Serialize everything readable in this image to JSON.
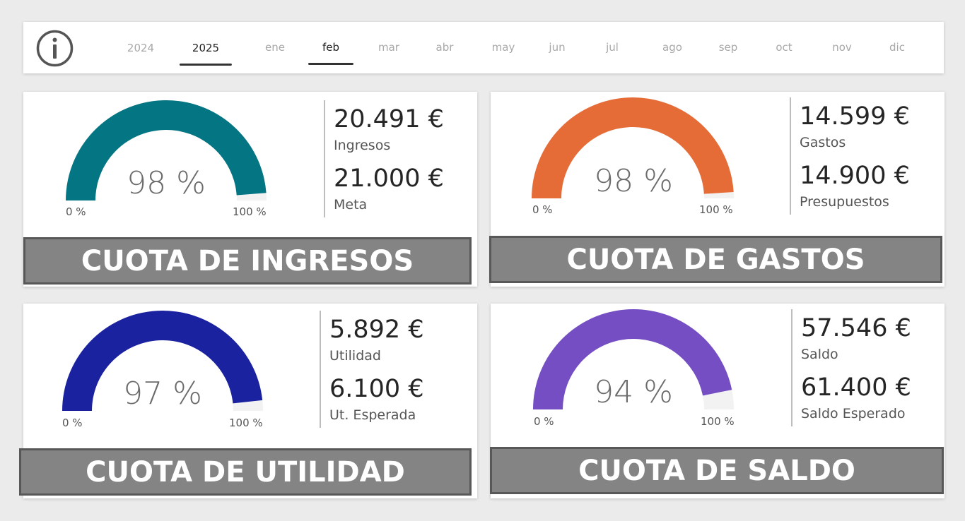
{
  "header": {
    "info_icon": "info-icon",
    "years": [
      {
        "label": "2024",
        "selected": false
      },
      {
        "label": "2025",
        "selected": true
      }
    ],
    "months": [
      {
        "label": "ene",
        "selected": false
      },
      {
        "label": "feb",
        "selected": true
      },
      {
        "label": "mar",
        "selected": false
      },
      {
        "label": "abr",
        "selected": false
      },
      {
        "label": "may",
        "selected": false
      },
      {
        "label": "jun",
        "selected": false
      },
      {
        "label": "jul",
        "selected": false
      },
      {
        "label": "ago",
        "selected": false
      },
      {
        "label": "sep",
        "selected": false
      },
      {
        "label": "oct",
        "selected": false
      },
      {
        "label": "nov",
        "selected": false
      },
      {
        "label": "dic",
        "selected": false
      }
    ]
  },
  "cards": [
    {
      "key": "ingresos",
      "color": "#047582",
      "gauge_fraction": 0.976,
      "gauge_pct": "98 %",
      "min_label": "0 %",
      "max_label": "100 %",
      "kpis": [
        {
          "value": "20.491 €",
          "label": "Ingresos"
        },
        {
          "value": "21.000 €",
          "label": "Meta"
        }
      ],
      "title": "CUOTA DE INGRESOS"
    },
    {
      "key": "gastos",
      "color": "#E66C37",
      "gauge_fraction": 0.98,
      "gauge_pct": "98 %",
      "min_label": "0 %",
      "max_label": "100 %",
      "kpis": [
        {
          "value": "14.599 €",
          "label": "Gastos"
        },
        {
          "value": "14.900 €",
          "label": "Presupuestos"
        }
      ],
      "title": "CUOTA DE GASTOS"
    },
    {
      "key": "utilidad",
      "color": "#1A22A0",
      "gauge_fraction": 0.966,
      "gauge_pct": "97 %",
      "min_label": "0 %",
      "max_label": "100 %",
      "kpis": [
        {
          "value": "5.892 €",
          "label": "Utilidad"
        },
        {
          "value": "6.100 €",
          "label": "Ut. Esperada"
        }
      ],
      "title": "CUOTA DE UTILIDAD"
    },
    {
      "key": "saldo",
      "color": "#744EC2",
      "gauge_fraction": 0.937,
      "gauge_pct": "94 %",
      "min_label": "0 %",
      "max_label": "100 %",
      "kpis": [
        {
          "value": "57.546 €",
          "label": "Saldo"
        },
        {
          "value": "61.400 €",
          "label": "Saldo Esperado"
        }
      ],
      "title": "CUOTA DE SALDO"
    }
  ]
}
